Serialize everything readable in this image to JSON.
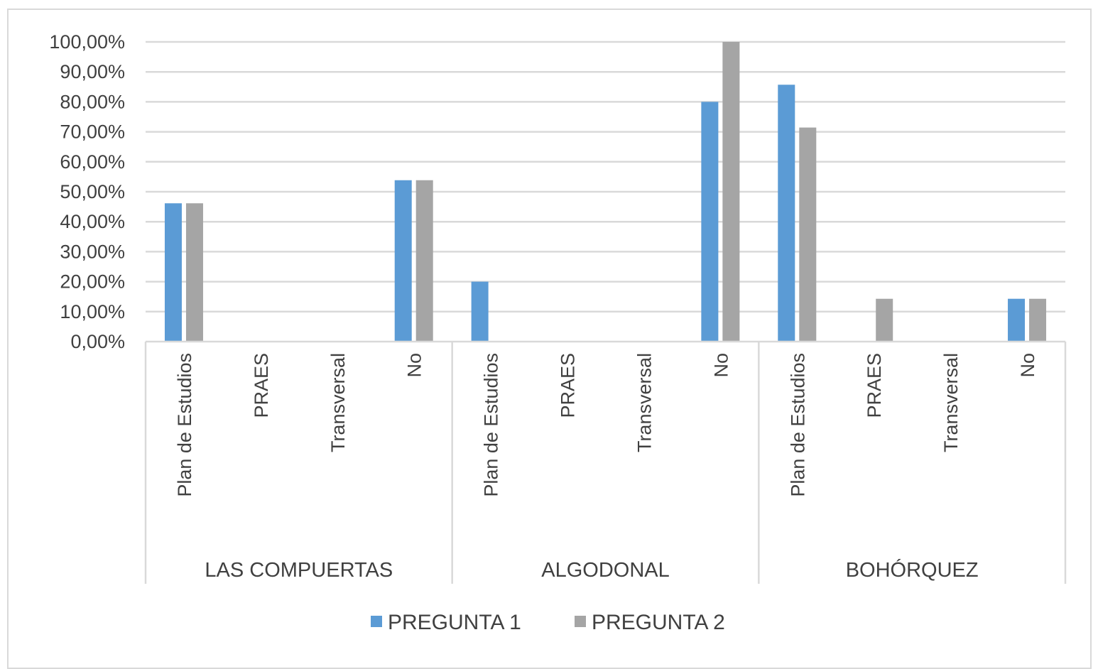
{
  "chart_data": {
    "type": "bar",
    "title": "",
    "xlabel": "",
    "ylabel": "",
    "ylim": [
      0,
      100
    ],
    "y_ticks": [
      "0,00%",
      "10,00%",
      "20,00%",
      "30,00%",
      "40,00%",
      "50,00%",
      "60,00%",
      "70,00%",
      "80,00%",
      "90,00%",
      "100,00%"
    ],
    "groups": [
      {
        "label": "LAS COMPUERTAS",
        "categories": [
          "Plan de Estudios",
          "PRAES",
          "Transversal",
          "No"
        ]
      },
      {
        "label": "ALGODONAL",
        "categories": [
          "Plan de Estudios",
          "PRAES",
          "Transversal",
          "No"
        ]
      },
      {
        "label": "BOHÓRQUEZ",
        "categories": [
          "Plan de Estudios",
          "PRAES",
          "Transversal",
          "No"
        ]
      }
    ],
    "series": [
      {
        "name": "PREGUNTA 1",
        "color": "#5b9bd5",
        "values": [
          46.15,
          0,
          0,
          53.85,
          20,
          0,
          0,
          80,
          85.71,
          0,
          0,
          14.29
        ]
      },
      {
        "name": "PREGUNTA 2",
        "color": "#a5a5a5",
        "values": [
          46.15,
          0,
          0,
          53.85,
          0,
          0,
          0,
          100,
          71.43,
          14.29,
          0,
          14.29
        ]
      }
    ],
    "grid": true,
    "legend": "bottom"
  }
}
